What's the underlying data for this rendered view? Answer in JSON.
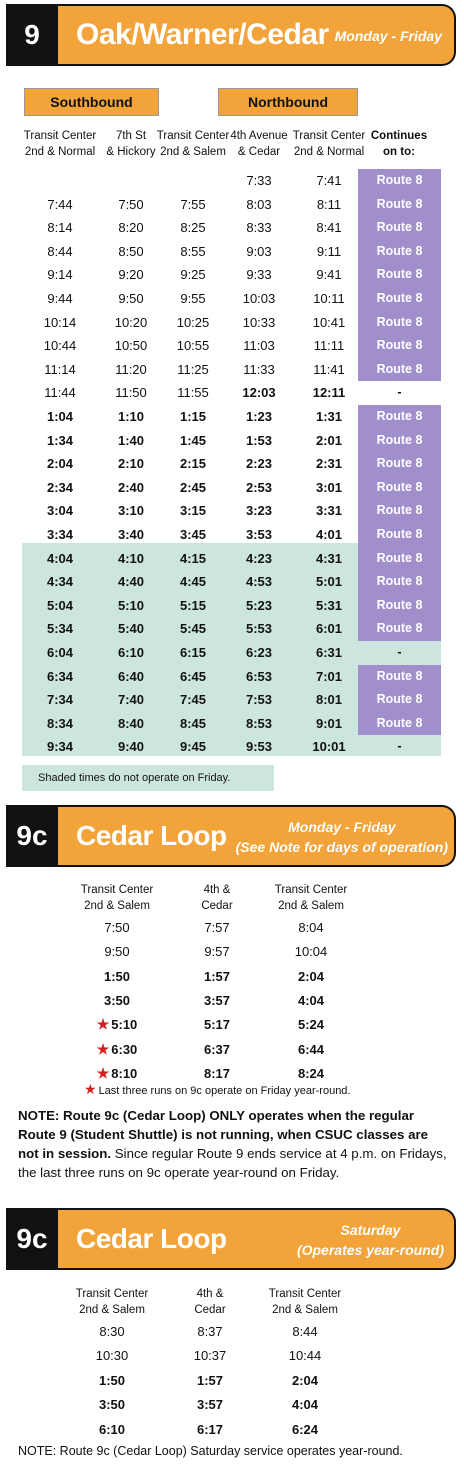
{
  "route9": {
    "number": "9",
    "name": "Oak/Warner/Cedar",
    "days": "Monday - Friday",
    "southbound_label": "Southbound",
    "northbound_label": "Northbound",
    "columns": [
      [
        "Transit Center",
        "2nd & Normal"
      ],
      [
        "7th St",
        "& Hickory"
      ],
      [
        "Transit Center",
        "2nd & Salem"
      ],
      [
        "4th Avenue",
        "& Cedar"
      ],
      [
        "Transit Center",
        "2nd & Normal"
      ],
      [
        "Continues",
        "on to:"
      ]
    ],
    "rows": [
      {
        "t": [
          "",
          "",
          "",
          "7:33",
          "7:41"
        ],
        "cont": "Route 8",
        "bold": false
      },
      {
        "t": [
          "7:44",
          "7:50",
          "7:55",
          "8:03",
          "8:11"
        ],
        "cont": "Route 8",
        "bold": false
      },
      {
        "t": [
          "8:14",
          "8:20",
          "8:25",
          "8:33",
          "8:41"
        ],
        "cont": "Route 8",
        "bold": false
      },
      {
        "t": [
          "8:44",
          "8:50",
          "8:55",
          "9:03",
          "9:11"
        ],
        "cont": "Route 8",
        "bold": false
      },
      {
        "t": [
          "9:14",
          "9:20",
          "9:25",
          "9:33",
          "9:41"
        ],
        "cont": "Route 8",
        "bold": false
      },
      {
        "t": [
          "9:44",
          "9:50",
          "9:55",
          "10:03",
          "10:11"
        ],
        "cont": "Route 8",
        "bold": false
      },
      {
        "t": [
          "10:14",
          "10:20",
          "10:25",
          "10:33",
          "10:41"
        ],
        "cont": "Route 8",
        "bold": false
      },
      {
        "t": [
          "10:44",
          "10:50",
          "10:55",
          "11:03",
          "11:11"
        ],
        "cont": "Route 8",
        "bold": false
      },
      {
        "t": [
          "11:14",
          "11:20",
          "11:25",
          "11:33",
          "11:41"
        ],
        "cont": "Route 8",
        "bold": false
      },
      {
        "t": [
          "11:44",
          "11:50",
          "11:55",
          "12:03",
          "12:11"
        ],
        "cont": "-",
        "bold": false
      },
      {
        "t": [
          "1:04",
          "1:10",
          "1:15",
          "1:23",
          "1:31"
        ],
        "cont": "Route 8",
        "bold": true
      },
      {
        "t": [
          "1:34",
          "1:40",
          "1:45",
          "1:53",
          "2:01"
        ],
        "cont": "Route 8",
        "bold": true
      },
      {
        "t": [
          "2:04",
          "2:10",
          "2:15",
          "2:23",
          "2:31"
        ],
        "cont": "Route 8",
        "bold": true
      },
      {
        "t": [
          "2:34",
          "2:40",
          "2:45",
          "2:53",
          "3:01"
        ],
        "cont": "Route 8",
        "bold": true
      },
      {
        "t": [
          "3:04",
          "3:10",
          "3:15",
          "3:23",
          "3:31"
        ],
        "cont": "Route 8",
        "bold": true
      },
      {
        "t": [
          "3:34",
          "3:40",
          "3:45",
          "3:53",
          "4:01"
        ],
        "cont": "Route 8",
        "bold": true
      },
      {
        "t": [
          "4:04",
          "4:10",
          "4:15",
          "4:23",
          "4:31"
        ],
        "cont": "Route 8",
        "bold": true
      },
      {
        "t": [
          "4:34",
          "4:40",
          "4:45",
          "4:53",
          "5:01"
        ],
        "cont": "Route 8",
        "bold": true
      },
      {
        "t": [
          "5:04",
          "5:10",
          "5:15",
          "5:23",
          "5:31"
        ],
        "cont": "Route 8",
        "bold": true
      },
      {
        "t": [
          "5:34",
          "5:40",
          "5:45",
          "5:53",
          "6:01"
        ],
        "cont": "Route 8",
        "bold": true
      },
      {
        "t": [
          "6:04",
          "6:10",
          "6:15",
          "6:23",
          "6:31"
        ],
        "cont": "-",
        "bold": true
      },
      {
        "t": [
          "6:34",
          "6:40",
          "6:45",
          "6:53",
          "7:01"
        ],
        "cont": "Route 8",
        "bold": true
      },
      {
        "t": [
          "7:34",
          "7:40",
          "7:45",
          "7:53",
          "8:01"
        ],
        "cont": "Route 8",
        "bold": true
      },
      {
        "t": [
          "8:34",
          "8:40",
          "8:45",
          "8:53",
          "9:01"
        ],
        "cont": "Route 8",
        "bold": true
      },
      {
        "t": [
          "9:34",
          "9:40",
          "9:45",
          "9:53",
          "10:01"
        ],
        "cont": "-",
        "bold": true
      }
    ],
    "shade_note": "Shaded times do not operate on Friday."
  },
  "route9c_weekday": {
    "number": "9c",
    "name": "Cedar Loop",
    "days_line1": "Monday - Friday",
    "days_line2": "(See Note for days of operation)",
    "columns": [
      [
        "Transit Center",
        "2nd & Salem"
      ],
      [
        "4th &",
        "Cedar"
      ],
      [
        "Transit Center",
        "2nd & Salem"
      ]
    ],
    "rows": [
      {
        "t": [
          "7:50",
          "7:57",
          "8:04"
        ],
        "star": false,
        "bold": false
      },
      {
        "t": [
          "9:50",
          "9:57",
          "10:04"
        ],
        "star": false,
        "bold": false
      },
      {
        "t": [
          "1:50",
          "1:57",
          "2:04"
        ],
        "star": false,
        "bold": true
      },
      {
        "t": [
          "3:50",
          "3:57",
          "4:04"
        ],
        "star": false,
        "bold": true
      },
      {
        "t": [
          "5:10",
          "5:17",
          "5:24"
        ],
        "star": true,
        "bold": true
      },
      {
        "t": [
          "6:30",
          "6:37",
          "6:44"
        ],
        "star": true,
        "bold": true
      },
      {
        "t": [
          "8:10",
          "8:17",
          "8:24"
        ],
        "star": true,
        "bold": true
      }
    ],
    "star_note": "Last three runs on 9c operate on Friday year-round.",
    "note_bold": "NOTE:  Route 9c (Cedar Loop) ONLY operates when the regular Route 9 (Student Shuttle) is not running, when CSUC classes are not in session.",
    "note_normal": " Since regular Route 9 ends service at 4 p.m. on Fridays, the last three runs on 9c operate year-round on Friday."
  },
  "route9c_saturday": {
    "number": "9c",
    "name": "Cedar Loop",
    "days_line1": "Saturday",
    "days_line2": "(Operates year-round)",
    "columns": [
      [
        "Transit Center",
        "2nd & Salem"
      ],
      [
        "4th &",
        "Cedar"
      ],
      [
        "Transit Center",
        "2nd & Salem"
      ]
    ],
    "rows": [
      {
        "t": [
          "8:30",
          "8:37",
          "8:44"
        ],
        "bold": false
      },
      {
        "t": [
          "10:30",
          "10:37",
          "10:44"
        ],
        "bold": false
      },
      {
        "t": [
          "1:50",
          "1:57",
          "2:04"
        ],
        "bold": true
      },
      {
        "t": [
          "3:50",
          "3:57",
          "4:04"
        ],
        "bold": true
      },
      {
        "t": [
          "6:10",
          "6:17",
          "6:24"
        ],
        "bold": true
      }
    ],
    "note": "NOTE:  Route 9c (Cedar Loop) Saturday service operates year-round."
  },
  "colors": {
    "orange": "#f2a33a",
    "purple": "#a08fcb",
    "shade": "#cde6dd",
    "star": "#d42020"
  }
}
